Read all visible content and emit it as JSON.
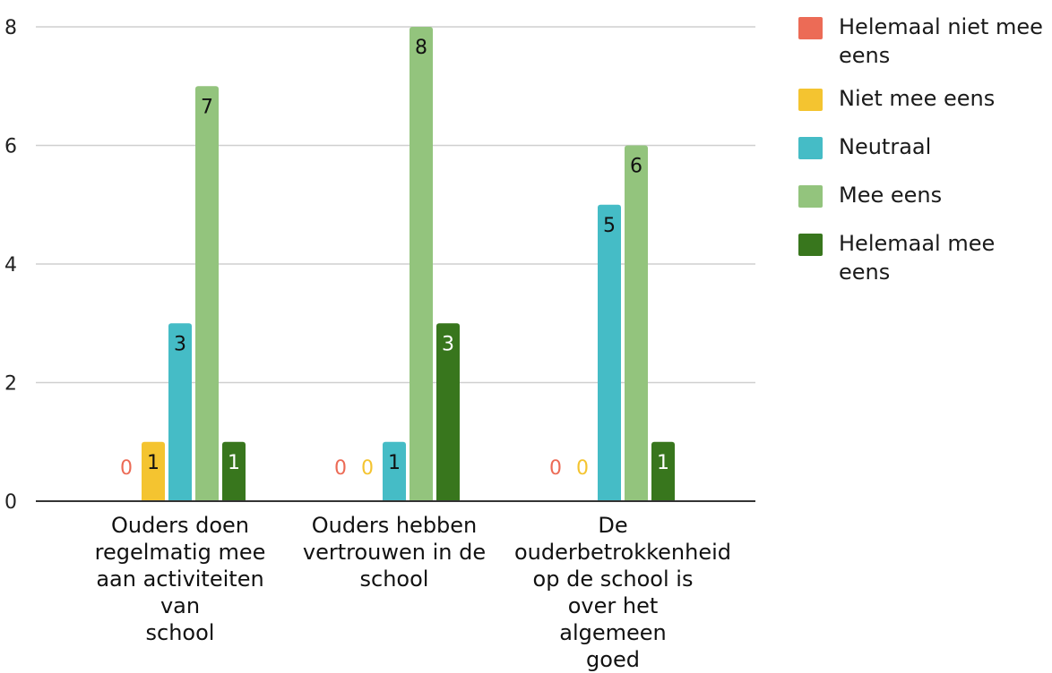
{
  "chart_data": {
    "type": "bar",
    "categories": [
      "Ouders doen regelmatig mee aan activiteiten van school",
      "Ouders hebben vertrouwen in de school",
      "De ouderbetrokkenheid op de school is over het algemeen goed"
    ],
    "series": [
      {
        "name": "Helemaal niet mee eens",
        "color": "#ec6b56",
        "values": [
          0,
          0,
          0
        ]
      },
      {
        "name": "Niet mee eens",
        "color": "#f4c430",
        "values": [
          1,
          0,
          0
        ]
      },
      {
        "name": "Neutraal",
        "color": "#45bcc6",
        "values": [
          3,
          1,
          5
        ]
      },
      {
        "name": "Mee eens",
        "color": "#93c47d",
        "values": [
          7,
          8,
          6
        ]
      },
      {
        "name": "Helemaal mee eens",
        "color": "#38761d",
        "values": [
          1,
          3,
          1
        ]
      }
    ],
    "y_ticks": [
      "0",
      "2",
      "4",
      "6",
      "8"
    ],
    "ylim": [
      0,
      8
    ],
    "xlabel": "",
    "ylabel": "",
    "title": "",
    "grid": true,
    "legend_position": "right",
    "data_labels": true
  }
}
